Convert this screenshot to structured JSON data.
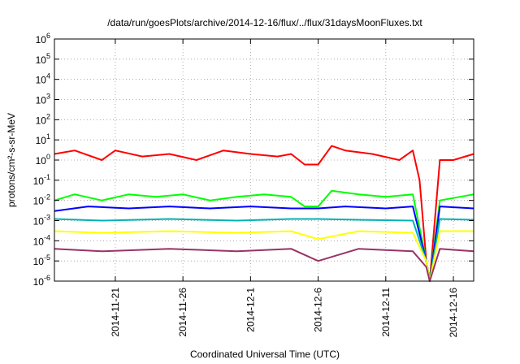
{
  "chart_data": {
    "type": "line",
    "title": "/data/run/goesPlots/archive/2014-12-16/flux/../flux/31daysMoonFluxes.txt",
    "xlabel": "Coordinated Universal Time (UTC)",
    "ylabel": "protons/cm²-s-sr-MeV",
    "yscale": "log",
    "ylim": [
      1e-06,
      1000000.0
    ],
    "xlim": [
      "2014-11-16T12:00",
      "2014-12-17T12:00"
    ],
    "grid": true,
    "y_ticks": [
      {
        "base": "10",
        "exp": "-6"
      },
      {
        "base": "10",
        "exp": "-5"
      },
      {
        "base": "10",
        "exp": "-4"
      },
      {
        "base": "10",
        "exp": "-3"
      },
      {
        "base": "10",
        "exp": "-2"
      },
      {
        "base": "10",
        "exp": "-1"
      },
      {
        "base": "10",
        "exp": "0"
      },
      {
        "base": "10",
        "exp": "1"
      },
      {
        "base": "10",
        "exp": "2"
      },
      {
        "base": "10",
        "exp": "3"
      },
      {
        "base": "10",
        "exp": "4"
      },
      {
        "base": "10",
        "exp": "5"
      },
      {
        "base": "10",
        "exp": "6"
      }
    ],
    "x_ticks": [
      "2014-11-21",
      "2014-11-26",
      "2014-12-1",
      "2014-12-6",
      "2014-12-11",
      "2014-12-16"
    ],
    "series": [
      {
        "color": "#ff0000",
        "x": [
          "2014-11-16T12:00",
          "2014-11-18",
          "2014-11-20",
          "2014-11-21",
          "2014-11-23",
          "2014-11-25",
          "2014-11-27",
          "2014-11-29",
          "2014-12-1",
          "2014-12-3",
          "2014-12-4",
          "2014-12-5",
          "2014-12-6",
          "2014-12-7",
          "2014-12-8",
          "2014-12-10",
          "2014-12-12",
          "2014-12-13",
          "2014-12-13T12:00",
          "2014-12-14",
          "2014-12-14T06:00",
          "2014-12-15",
          "2014-12-16",
          "2014-12-17T12:00"
        ],
        "values": [
          2,
          3,
          1,
          3,
          1.5,
          2,
          1,
          3,
          2,
          1.5,
          2,
          0.6,
          0.6,
          5,
          3,
          2,
          1,
          3,
          0.1,
          1e-05,
          1e-06,
          1,
          1,
          2
        ]
      },
      {
        "color": "#00ff00",
        "x": [
          "2014-11-16T12:00",
          "2014-11-18",
          "2014-11-20",
          "2014-11-22",
          "2014-11-24",
          "2014-11-26",
          "2014-11-28",
          "2014-11-30",
          "2014-12-2",
          "2014-12-4",
          "2014-12-5",
          "2014-12-6",
          "2014-12-7",
          "2014-12-9",
          "2014-12-11",
          "2014-12-13",
          "2014-12-14",
          "2014-12-14T06:00",
          "2014-12-15",
          "2014-12-17T12:00"
        ],
        "values": [
          0.01,
          0.02,
          0.01,
          0.02,
          0.015,
          0.02,
          0.01,
          0.015,
          0.02,
          0.015,
          0.005,
          0.005,
          0.03,
          0.02,
          0.015,
          0.02,
          1e-05,
          1e-06,
          0.01,
          0.02
        ]
      },
      {
        "color": "#0000ff",
        "x": [
          "2014-11-16T12:00",
          "2014-11-19",
          "2014-11-22",
          "2014-11-25",
          "2014-11-28",
          "2014-12-1",
          "2014-12-4",
          "2014-12-6",
          "2014-12-8",
          "2014-12-11",
          "2014-12-13",
          "2014-12-14",
          "2014-12-14T06:00",
          "2014-12-15",
          "2014-12-17T12:00"
        ],
        "values": [
          0.003,
          0.005,
          0.004,
          0.005,
          0.004,
          0.005,
          0.004,
          0.004,
          0.005,
          0.004,
          0.005,
          1e-05,
          1e-06,
          0.005,
          0.004
        ]
      },
      {
        "color": "#00b3b3",
        "x": [
          "2014-11-16T12:00",
          "2014-11-20",
          "2014-11-25",
          "2014-11-30",
          "2014-12-4",
          "2014-12-6",
          "2014-12-9",
          "2014-12-13",
          "2014-12-14",
          "2014-12-14T06:00",
          "2014-12-15",
          "2014-12-17T12:00"
        ],
        "values": [
          0.0012,
          0.001,
          0.0012,
          0.001,
          0.0012,
          0.0012,
          0.0011,
          0.001,
          1e-05,
          1e-06,
          0.0012,
          0.0011
        ]
      },
      {
        "color": "#ffff00",
        "x": [
          "2014-11-16T12:00",
          "2014-11-20",
          "2014-11-25",
          "2014-11-30",
          "2014-12-4",
          "2014-12-6",
          "2014-12-9",
          "2014-12-13",
          "2014-12-14",
          "2014-12-14T06:00",
          "2014-12-15",
          "2014-12-17T12:00"
        ],
        "values": [
          0.0003,
          0.00025,
          0.0003,
          0.00025,
          0.0003,
          0.00012,
          0.0003,
          0.00025,
          1e-05,
          1e-06,
          0.0003,
          0.0003
        ]
      },
      {
        "color": "#993366",
        "x": [
          "2014-11-16T12:00",
          "2014-11-20",
          "2014-11-25",
          "2014-11-30",
          "2014-12-4",
          "2014-12-6",
          "2014-12-9",
          "2014-12-13",
          "2014-12-14",
          "2014-12-14T06:00",
          "2014-12-15",
          "2014-12-17T12:00"
        ],
        "values": [
          4e-05,
          3e-05,
          4e-05,
          3e-05,
          4e-05,
          1e-05,
          4e-05,
          3e-05,
          5e-06,
          1e-06,
          4e-05,
          3e-05
        ]
      }
    ]
  }
}
